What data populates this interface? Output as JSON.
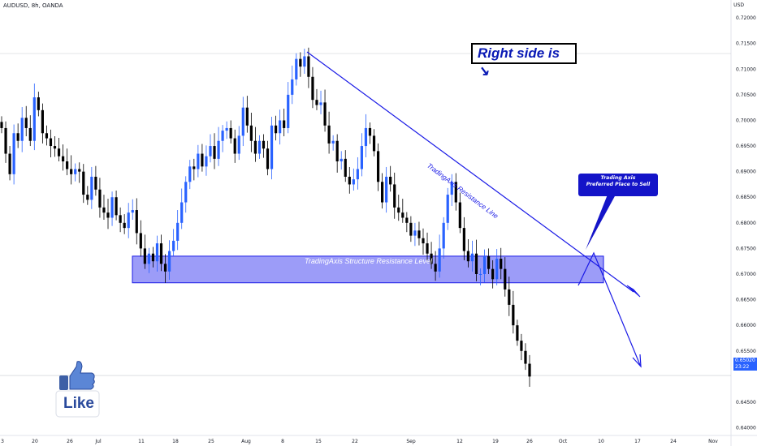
{
  "header": {
    "symbol_title": "AUDUSD, 8h, OANDA",
    "currency": "USD"
  },
  "price_tag": {
    "price": "0.65020",
    "countdown": "23:22"
  },
  "annotations": {
    "note": "Right side is ↘",
    "zone_label": "TradingAxis Structure Resistance Level",
    "line_label": "TradingAxis Resistance Line",
    "bubble_line1": "Trading Axis",
    "bubble_line2": "Preferred Place to Sell",
    "like": "Like"
  },
  "colors": {
    "bull": "#2962ff",
    "bear": "#000000",
    "drawing": "#1a1ae6",
    "zone_fill": "#7b7bf5",
    "bubble": "#1414c8"
  },
  "chart_data": {
    "type": "candlestick",
    "instrument": "AUDUSD",
    "timeframe": "8h",
    "x_ticks": [
      "3",
      "20",
      "26",
      "Jul",
      "11",
      "18",
      "25",
      "Aug",
      "8",
      "15",
      "22",
      "Sep",
      "12",
      "19",
      "26",
      "Oct",
      "10",
      "17",
      "24",
      "Nov"
    ],
    "y_ticks": [
      "0.72000",
      "0.71500",
      "0.71000",
      "0.70500",
      "0.70000",
      "0.69500",
      "0.69000",
      "0.68500",
      "0.68000",
      "0.67500",
      "0.67000",
      "0.66500",
      "0.66000",
      "0.65500",
      "0.64500",
      "0.64000"
    ],
    "ylim": [
      0.6385,
      0.7235
    ],
    "last_price": 0.6502,
    "resistance_zone": [
      0.6683,
      0.6735
    ],
    "resistance_line": {
      "from": [
        "Aug 12",
        0.7142
      ],
      "to": [
        "Oct 20",
        0.6642
      ]
    },
    "projection_arrows": [
      {
        "from": [
          "Oct 6",
          0.6693
        ],
        "to": [
          "Oct 9",
          0.6715
        ]
      },
      {
        "from": [
          "Oct 9",
          0.6715
        ],
        "to": [
          "Oct 17",
          0.6505
        ]
      }
    ],
    "closes": [
      0.6985,
      0.6935,
      0.6895,
      0.6975,
      0.696,
      0.7005,
      0.6985,
      0.696,
      0.7045,
      0.702,
      0.6975,
      0.6965,
      0.695,
      0.6945,
      0.693,
      0.692,
      0.6905,
      0.6895,
      0.6905,
      0.69,
      0.6855,
      0.6845,
      0.689,
      0.6865,
      0.683,
      0.682,
      0.681,
      0.685,
      0.6815,
      0.68,
      0.679,
      0.682,
      0.6825,
      0.678,
      0.675,
      0.672,
      0.674,
      0.6725,
      0.676,
      0.672,
      0.6705,
      0.6745,
      0.6765,
      0.68,
      0.684,
      0.688,
      0.691,
      0.6905,
      0.6935,
      0.691,
      0.693,
      0.695,
      0.6925,
      0.696,
      0.698,
      0.6985,
      0.6965,
      0.6935,
      0.697,
      0.7025,
      0.699,
      0.696,
      0.6935,
      0.696,
      0.6945,
      0.6905,
      0.699,
      0.6975,
      0.7,
      0.6985,
      0.705,
      0.708,
      0.712,
      0.7105,
      0.7125,
      0.7085,
      0.704,
      0.703,
      0.7035,
      0.699,
      0.6955,
      0.696,
      0.692,
      0.6925,
      0.689,
      0.6875,
      0.6885,
      0.6905,
      0.695,
      0.6985,
      0.697,
      0.694,
      0.688,
      0.684,
      0.689,
      0.6875,
      0.683,
      0.682,
      0.681,
      0.68,
      0.6775,
      0.6785,
      0.677,
      0.676,
      0.674,
      0.672,
      0.6705,
      0.675,
      0.68,
      0.6855,
      0.688,
      0.684,
      0.679,
      0.6745,
      0.6725,
      0.674,
      0.67,
      0.67,
      0.6735,
      0.671,
      0.669,
      0.673,
      0.671,
      0.667,
      0.664,
      0.66,
      0.657,
      0.655,
      0.6525,
      0.65
    ]
  }
}
